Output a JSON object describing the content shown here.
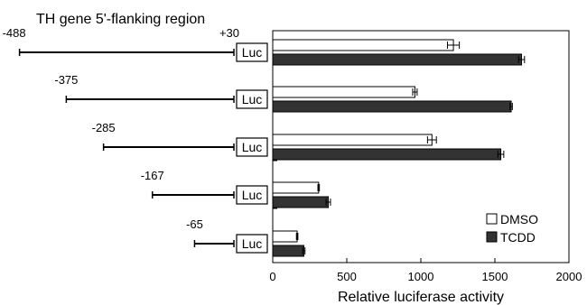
{
  "chart_data": {
    "type": "bar",
    "title": "TH gene 5'-flanking region",
    "xlabel": "Relative luciferase activity",
    "ylabel": "",
    "xlim": [
      0,
      2000
    ],
    "xticks": [
      0,
      500,
      1000,
      1500,
      2000
    ],
    "grid": false,
    "legend_position": "bottom-right",
    "reporter_label": "Luc",
    "end_label": "+30",
    "constructs": [
      "-488",
      "-375",
      "-285",
      "-167",
      "-65"
    ],
    "construct_starts": [
      -488,
      -375,
      -285,
      -167,
      -65
    ],
    "series": [
      {
        "name": "DMSO",
        "color": "#ffffff",
        "values": [
          1220,
          960,
          1075,
          310,
          165
        ],
        "errors": [
          40,
          15,
          30,
          5,
          5
        ]
      },
      {
        "name": "TCDD",
        "color": "#333333",
        "values": [
          1680,
          1610,
          1540,
          375,
          210
        ],
        "errors": [
          20,
          8,
          20,
          15,
          8
        ]
      }
    ]
  }
}
